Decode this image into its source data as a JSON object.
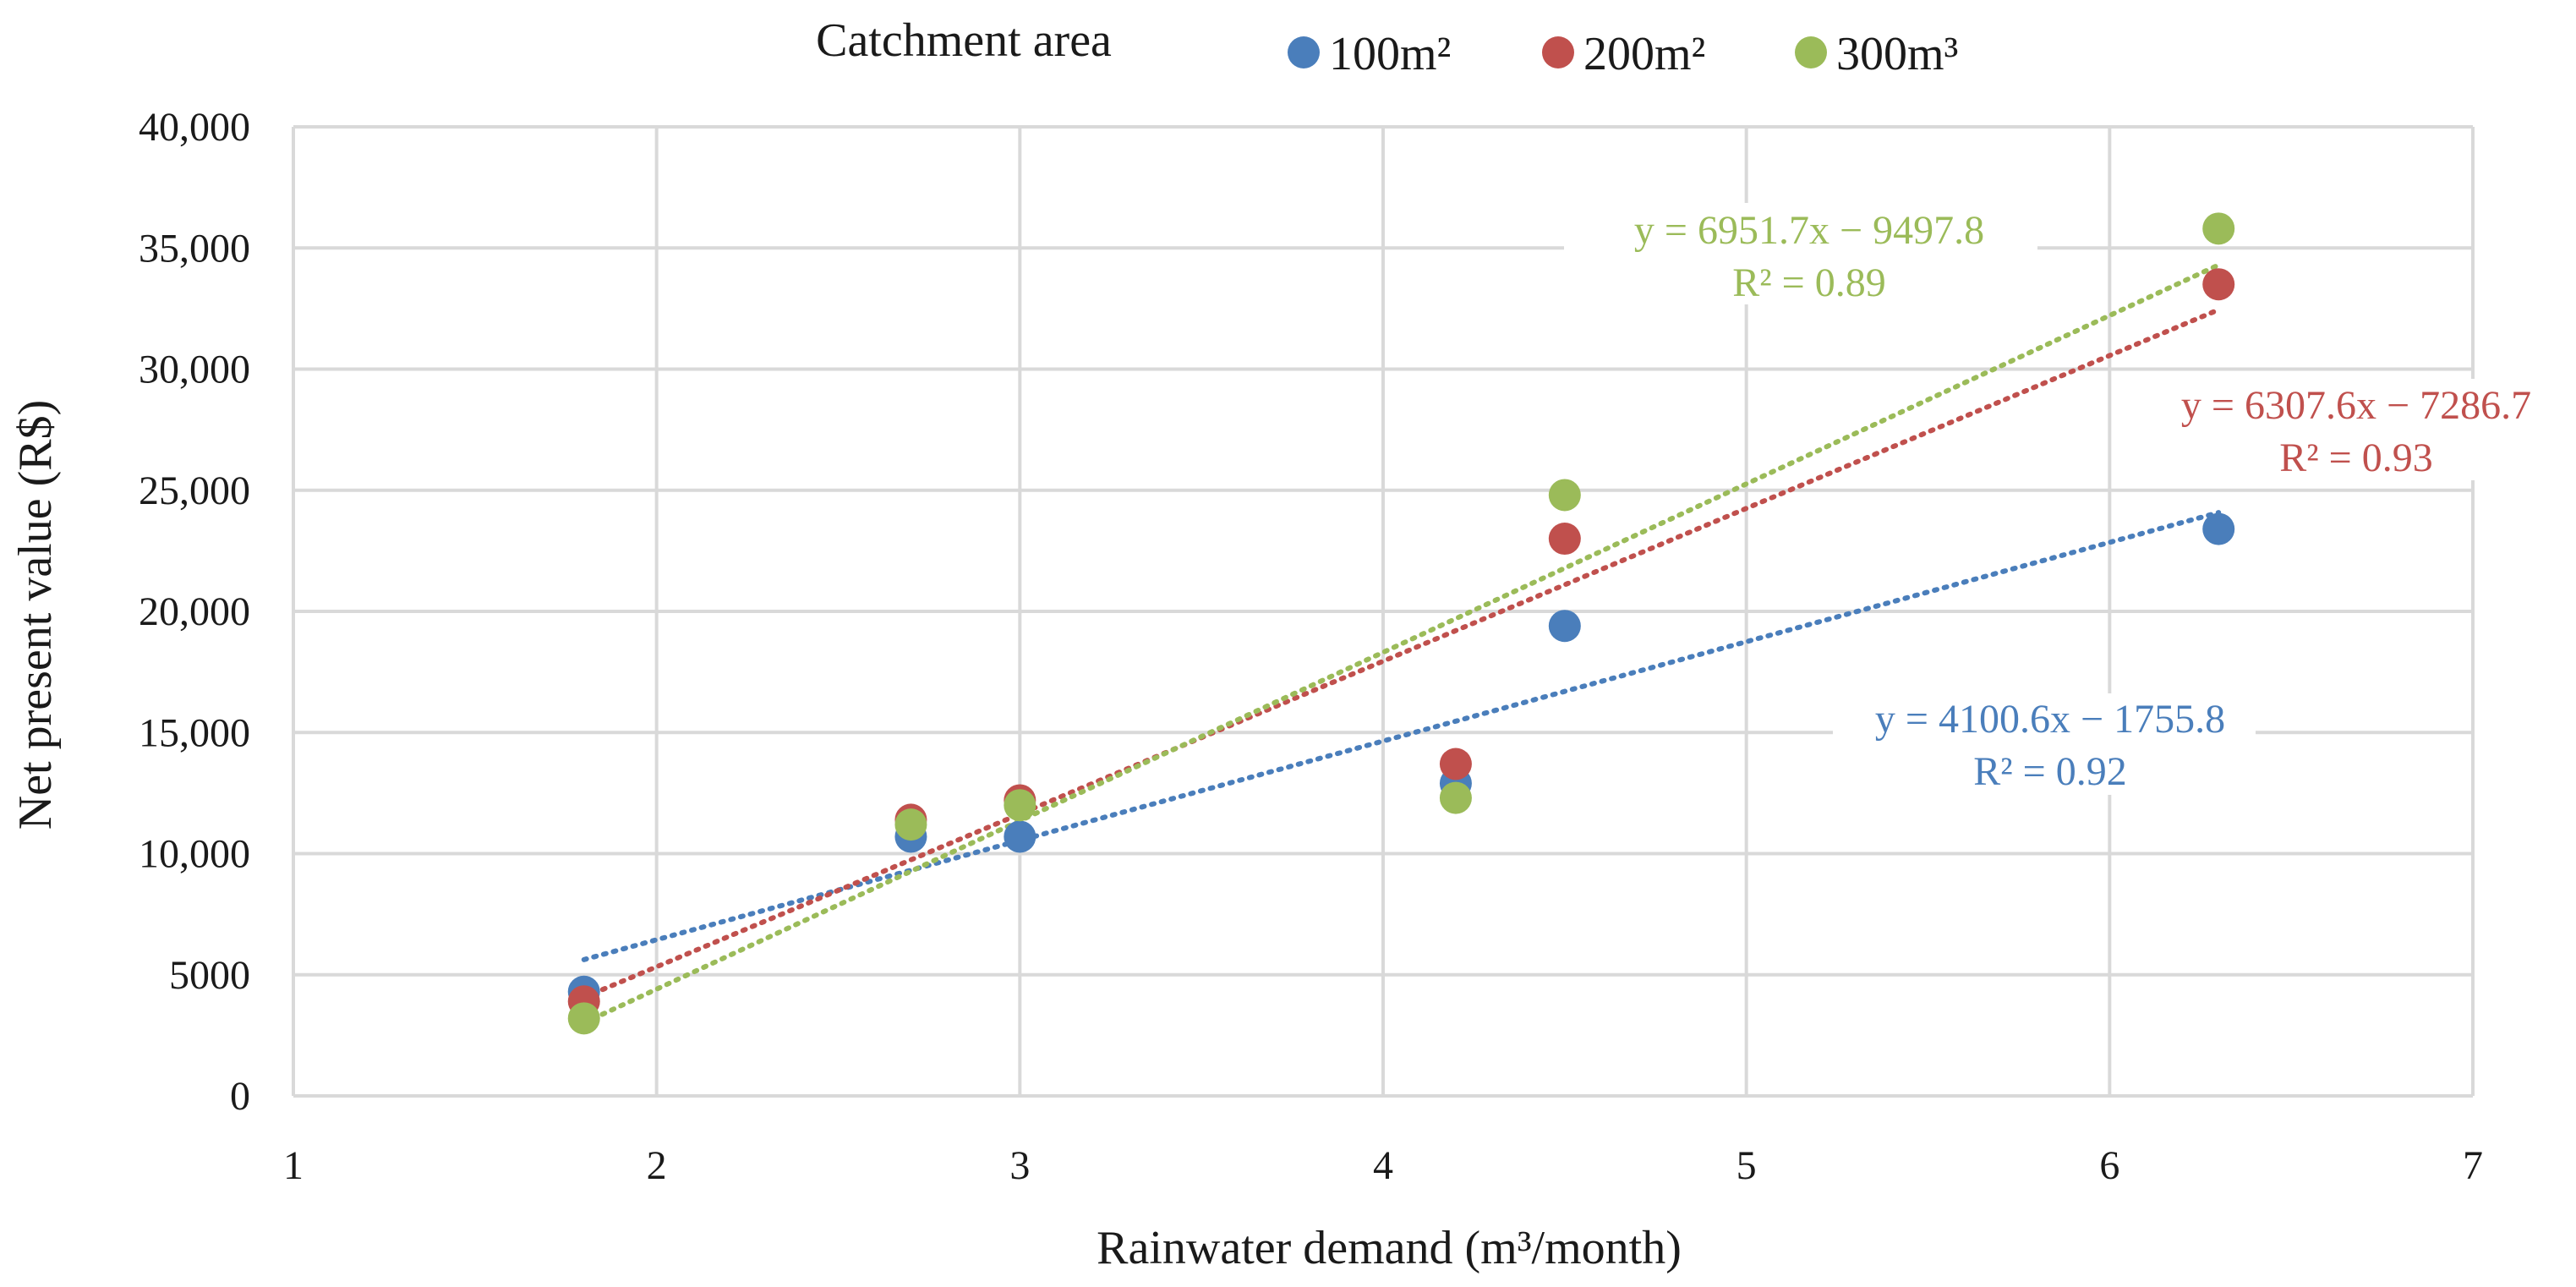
{
  "chart_data": {
    "type": "scatter",
    "xlabel": "Rainwater demand (m³/month)",
    "ylabel": "Net present value (R$)",
    "xlim": [
      1,
      7
    ],
    "ylim": [
      0,
      40000
    ],
    "x_ticks": [
      "1",
      "2",
      "3",
      "4",
      "5",
      "6",
      "7"
    ],
    "y_ticks": [
      "0",
      "5000",
      "10,000",
      "15,000",
      "20,000",
      "25,000",
      "30,000",
      "35,000",
      "40,000"
    ],
    "grid": true,
    "legend": {
      "title": "Catchment area",
      "placement": "top"
    },
    "series": [
      {
        "name": "100m²",
        "color": "#4a7ebb",
        "points": [
          [
            1.8,
            4300
          ],
          [
            2.7,
            10700
          ],
          [
            3.0,
            10700
          ],
          [
            4.2,
            12900
          ],
          [
            4.5,
            19400
          ],
          [
            6.3,
            23400
          ]
        ],
        "trendline": {
          "slope": 4100.6,
          "intercept": -1755.8,
          "x_range": [
            1.8,
            6.3
          ]
        },
        "equation": "y = 4100.6x − 1755.8",
        "r2": "R² = 0.92"
      },
      {
        "name": "200m²",
        "color": "#c0504d",
        "points": [
          [
            1.8,
            3900
          ],
          [
            2.7,
            11400
          ],
          [
            3.0,
            12200
          ],
          [
            4.2,
            13700
          ],
          [
            4.5,
            23000
          ],
          [
            6.3,
            33500
          ]
        ],
        "trendline": {
          "slope": 6307.6,
          "intercept": -7286.7,
          "x_range": [
            1.8,
            6.3
          ]
        },
        "equation": "y = 6307.6x − 7286.7",
        "r2": "R² = 0.93"
      },
      {
        "name": "300m³",
        "color": "#9bbb59",
        "points": [
          [
            1.8,
            3200
          ],
          [
            2.7,
            11200
          ],
          [
            3.0,
            12000
          ],
          [
            4.2,
            12300
          ],
          [
            4.5,
            24800
          ],
          [
            6.3,
            35800
          ]
        ],
        "trendline": {
          "slope": 6951.7,
          "intercept": -9497.8,
          "x_range": [
            1.8,
            6.3
          ]
        },
        "equation": "y = 6951.7x − 9497.8",
        "r2": "R² = 0.89"
      }
    ]
  }
}
